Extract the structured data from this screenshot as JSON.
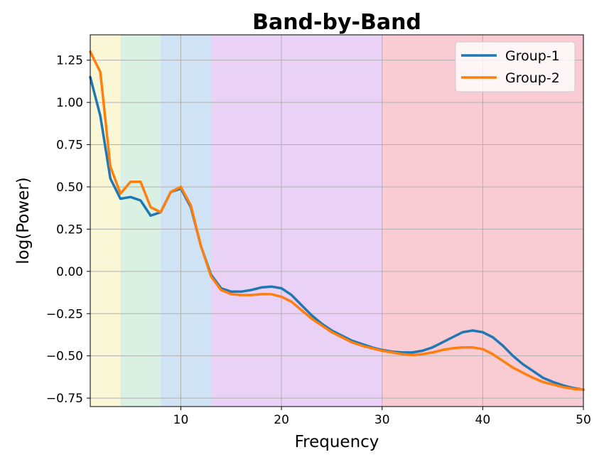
{
  "chart_data": {
    "type": "line",
    "title": "Band-by-Band",
    "xlabel": "Frequency",
    "ylabel": "log(Power)",
    "xlim": [
      1,
      50
    ],
    "ylim": [
      -0.8,
      1.4
    ],
    "xticks": [
      10,
      20,
      30,
      40,
      50
    ],
    "yticks": [
      -0.75,
      -0.5,
      -0.25,
      0.0,
      0.25,
      0.5,
      0.75,
      1.0,
      1.25
    ],
    "xtick_labels": [
      "10",
      "20",
      "30",
      "40",
      "50"
    ],
    "ytick_labels": [
      "−0.75",
      "−0.50",
      "−0.25",
      "0.00",
      "0.25",
      "0.50",
      "0.75",
      "1.00",
      "1.25"
    ],
    "grid": true,
    "legend_position": "top-right",
    "bands": [
      {
        "from": 1,
        "to": 4,
        "color": "#faf7d6"
      },
      {
        "from": 4,
        "to": 8,
        "color": "#daf0e2"
      },
      {
        "from": 8,
        "to": 13,
        "color": "#cfe3f5"
      },
      {
        "from": 13,
        "to": 30,
        "color": "#e9d2f6"
      },
      {
        "from": 30,
        "to": 50,
        "color": "#f9cbd3"
      }
    ],
    "x": [
      1,
      2,
      3,
      4,
      5,
      6,
      7,
      8,
      9,
      10,
      11,
      12,
      13,
      14,
      15,
      16,
      17,
      18,
      19,
      20,
      21,
      22,
      23,
      24,
      25,
      26,
      27,
      28,
      29,
      30,
      31,
      32,
      33,
      34,
      35,
      36,
      37,
      38,
      39,
      40,
      41,
      42,
      43,
      44,
      45,
      46,
      47,
      48,
      49,
      50
    ],
    "series": [
      {
        "name": "Group-1",
        "color": "#1f77b4",
        "values": [
          1.15,
          0.92,
          0.55,
          0.43,
          0.44,
          0.42,
          0.33,
          0.35,
          0.47,
          0.49,
          0.38,
          0.15,
          -0.02,
          -0.1,
          -0.12,
          -0.12,
          -0.11,
          -0.095,
          -0.09,
          -0.1,
          -0.14,
          -0.2,
          -0.26,
          -0.31,
          -0.35,
          -0.38,
          -0.41,
          -0.43,
          -0.45,
          -0.465,
          -0.475,
          -0.48,
          -0.48,
          -0.47,
          -0.45,
          -0.42,
          -0.39,
          -0.36,
          -0.35,
          -0.36,
          -0.39,
          -0.44,
          -0.5,
          -0.55,
          -0.59,
          -0.63,
          -0.655,
          -0.675,
          -0.69,
          -0.7
        ]
      },
      {
        "name": "Group-2",
        "color": "#ff7f0e",
        "values": [
          1.3,
          1.18,
          0.62,
          0.46,
          0.53,
          0.53,
          0.38,
          0.35,
          0.47,
          0.5,
          0.39,
          0.15,
          -0.03,
          -0.11,
          -0.135,
          -0.14,
          -0.14,
          -0.135,
          -0.135,
          -0.15,
          -0.18,
          -0.23,
          -0.28,
          -0.32,
          -0.36,
          -0.39,
          -0.42,
          -0.44,
          -0.455,
          -0.47,
          -0.48,
          -0.49,
          -0.495,
          -0.49,
          -0.48,
          -0.465,
          -0.455,
          -0.45,
          -0.45,
          -0.46,
          -0.49,
          -0.53,
          -0.57,
          -0.6,
          -0.63,
          -0.655,
          -0.67,
          -0.685,
          -0.695,
          -0.7
        ]
      }
    ]
  }
}
